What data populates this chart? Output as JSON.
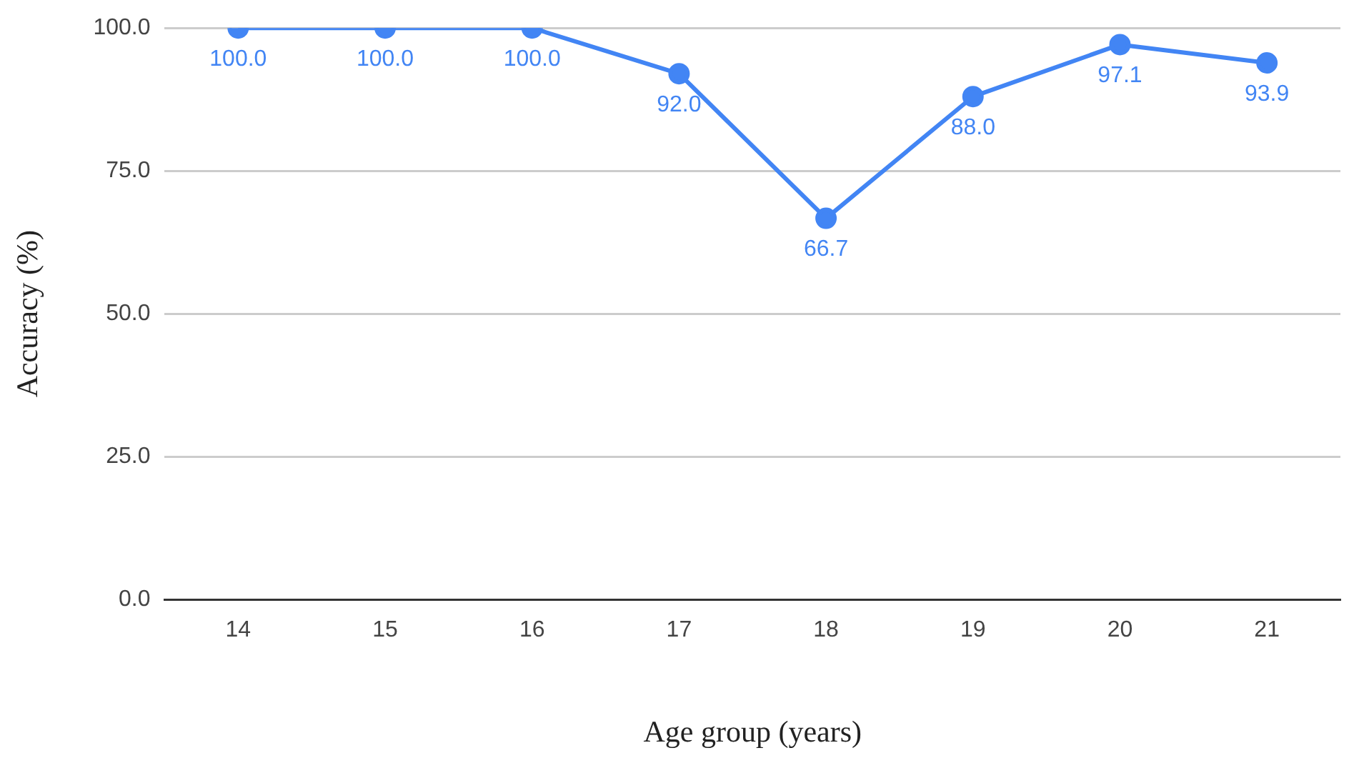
{
  "chart_data": {
    "type": "line",
    "xlabel": "Age group (years)",
    "ylabel": "Accuracy (%)",
    "categories": [
      "14",
      "15",
      "16",
      "17",
      "18",
      "19",
      "20",
      "21"
    ],
    "series": [
      {
        "color": "#4285f4",
        "values": [
          100,
          100,
          100,
          92,
          66.7,
          88,
          97.1,
          93.9
        ],
        "value_labels": [
          "100.0",
          "100.0",
          "100.0",
          "92.0",
          "66.7",
          "88.0",
          "97.1",
          "93.9"
        ]
      }
    ],
    "ylim": [
      0,
      100
    ],
    "yticks": [
      {
        "value": 0,
        "label": "0.0"
      },
      {
        "value": 25,
        "label": "25.0"
      },
      {
        "value": 50,
        "label": "50.0"
      },
      {
        "value": 75,
        "label": "75.0"
      },
      {
        "value": 100,
        "label": "100.0"
      }
    ],
    "grid": "y",
    "legend": false,
    "marker": "circle",
    "line_style": "solid"
  }
}
